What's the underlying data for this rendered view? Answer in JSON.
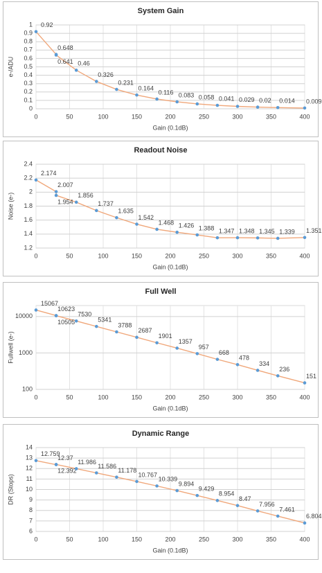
{
  "chart_data": [
    {
      "type": "line",
      "title": "System Gain",
      "x_label": "Gain (0.1dB)",
      "y_label": "e-/ADU",
      "x": [
        0,
        30,
        30,
        60,
        90,
        120,
        150,
        180,
        210,
        240,
        270,
        300,
        330,
        360,
        400
      ],
      "series": [
        {
          "color": "#f0a77a",
          "marker_color": "#5b9bd5",
          "values": [
            0.92,
            0.648,
            0.641,
            0.46,
            0.326,
            0.231,
            0.164,
            0.116,
            0.083,
            0.058,
            0.041,
            0.029,
            0.02,
            0.014,
            0.009
          ]
        }
      ],
      "xlim": [
        0,
        400
      ],
      "xticks": [
        0,
        50,
        100,
        150,
        200,
        250,
        300,
        350,
        400
      ],
      "ylim": [
        0,
        1
      ],
      "yticks": [
        0,
        0.1,
        0.2,
        0.3,
        0.4,
        0.5,
        0.6,
        0.7,
        0.8,
        0.9,
        1
      ],
      "grid": true,
      "log_scale": false
    },
    {
      "type": "line",
      "title": "Readout Noise",
      "x_label": "Gain (0.1dB)",
      "y_label": "Noise (e-)",
      "x": [
        0,
        30,
        30,
        60,
        90,
        120,
        150,
        180,
        210,
        240,
        270,
        300,
        330,
        360,
        400
      ],
      "series": [
        {
          "color": "#f0a77a",
          "marker_color": "#5b9bd5",
          "values": [
            2.174,
            2.007,
            1.954,
            1.856,
            1.737,
            1.635,
            1.542,
            1.468,
            1.426,
            1.388,
            1.347,
            1.348,
            1.345,
            1.339,
            1.351
          ]
        }
      ],
      "xlim": [
        0,
        400
      ],
      "xticks": [
        0,
        50,
        100,
        150,
        200,
        250,
        300,
        350,
        400
      ],
      "ylim": [
        1.2,
        2.4
      ],
      "yticks": [
        1.2,
        1.4,
        1.6,
        1.8,
        2,
        2.2,
        2.4
      ],
      "grid": true,
      "log_scale": false
    },
    {
      "type": "line",
      "title": "Full Well",
      "x_label": "Gain (0.1dB)",
      "y_label": "Fullwell (e-)",
      "x": [
        0,
        30,
        30,
        60,
        90,
        120,
        150,
        180,
        210,
        240,
        270,
        300,
        330,
        360,
        400
      ],
      "series": [
        {
          "color": "#f0a77a",
          "marker_color": "#5b9bd5",
          "values": [
            15067,
            10623,
            10505,
            7530,
            5341,
            3788,
            2687,
            1901,
            1357,
            957,
            668,
            478,
            334,
            236,
            151
          ]
        }
      ],
      "xlim": [
        0,
        400
      ],
      "xticks": [
        0,
        50,
        100,
        150,
        200,
        250,
        300,
        350,
        400
      ],
      "ylim": [
        100,
        20000
      ],
      "yticks": [
        100,
        1000,
        10000
      ],
      "grid": true,
      "log_scale": true
    },
    {
      "type": "line",
      "title": "Dynamic Range",
      "x_label": "Gain (0.1dB)",
      "y_label": "DR (Stops)",
      "x": [
        0,
        30,
        30,
        60,
        90,
        120,
        150,
        180,
        210,
        240,
        270,
        300,
        330,
        360,
        400
      ],
      "series": [
        {
          "color": "#f0a77a",
          "marker_color": "#5b9bd5",
          "values": [
            12.759,
            12.37,
            12.392,
            11.986,
            11.586,
            11.178,
            10.767,
            10.339,
            9.894,
            9.429,
            8.954,
            8.47,
            7.956,
            7.461,
            6.804
          ]
        }
      ],
      "xlim": [
        0,
        400
      ],
      "xticks": [
        0,
        50,
        100,
        150,
        200,
        250,
        300,
        350,
        400
      ],
      "ylim": [
        6,
        14
      ],
      "yticks": [
        6,
        7,
        8,
        9,
        10,
        11,
        12,
        13,
        14
      ],
      "grid": true,
      "log_scale": false
    }
  ]
}
